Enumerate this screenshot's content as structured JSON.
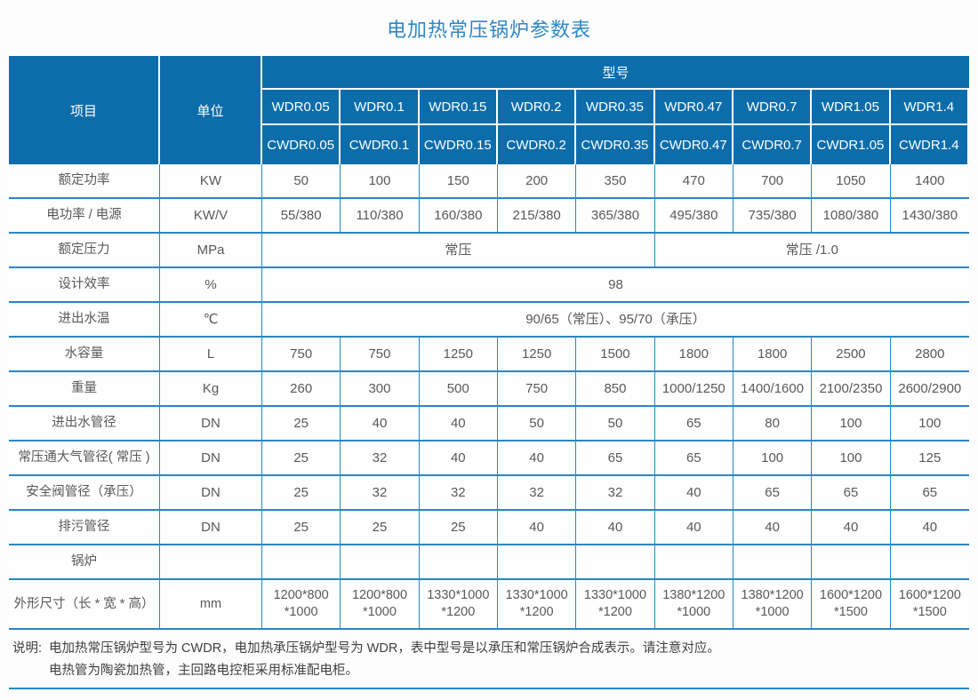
{
  "title": "电加热常压锅炉参数表",
  "colors": {
    "header_bg": "#0d6dab",
    "grid_line": "#2a86c3",
    "header_grid_line": "#ffffff",
    "title_text": "#2e87c5",
    "body_text": "#58595b"
  },
  "table": {
    "header": {
      "item_label": "项目",
      "unit_label": "单位",
      "model_label": "型号",
      "model_rows": [
        [
          "WDR0.05",
          "WDR0.1",
          "WDR0.15",
          "WDR0.2",
          "WDR0.35",
          "WDR0.47",
          "WDR0.7",
          "WDR1.05",
          "WDR1.4"
        ],
        [
          "CWDR0.05",
          "CWDR0.1",
          "CWDR0.15",
          "CWDR0.2",
          "CWDR0.35",
          "CWDR0.47",
          "CWDR0.7",
          "CWDR1.05",
          "CWDR1.4"
        ]
      ]
    },
    "rows": [
      {
        "label": "额定功率",
        "unit": "KW",
        "cells": [
          {
            "t": "50"
          },
          {
            "t": "100"
          },
          {
            "t": "150"
          },
          {
            "t": "200"
          },
          {
            "t": "350"
          },
          {
            "t": "470"
          },
          {
            "t": "700"
          },
          {
            "t": "1050"
          },
          {
            "t": "1400"
          }
        ]
      },
      {
        "label": "电功率 / 电源",
        "unit": "KW/V",
        "cells": [
          {
            "t": "55/380"
          },
          {
            "t": "110/380"
          },
          {
            "t": "160/380"
          },
          {
            "t": "215/380"
          },
          {
            "t": "365/380"
          },
          {
            "t": "495/380"
          },
          {
            "t": "735/380"
          },
          {
            "t": "1080/380"
          },
          {
            "t": "1430/380"
          }
        ]
      },
      {
        "label": "额定压力",
        "unit": "MPa",
        "cells": [
          {
            "t": "常压",
            "span": 5
          },
          {
            "t": "常压 /1.0",
            "span": 4
          }
        ]
      },
      {
        "label": "设计效率",
        "unit": "%",
        "cells": [
          {
            "t": "98",
            "span": 9
          }
        ]
      },
      {
        "label": "进出水温",
        "unit": "℃",
        "cells": [
          {
            "t": "90/65（常压）、95/70（承压）",
            "span": 9
          }
        ]
      },
      {
        "label": "水容量",
        "unit": "L",
        "cells": [
          {
            "t": "750"
          },
          {
            "t": "750"
          },
          {
            "t": "1250"
          },
          {
            "t": "1250"
          },
          {
            "t": "1500"
          },
          {
            "t": "1800"
          },
          {
            "t": "1800"
          },
          {
            "t": "2500"
          },
          {
            "t": "2800"
          }
        ]
      },
      {
        "label": "重量",
        "unit": "Kg",
        "cells": [
          {
            "t": "260"
          },
          {
            "t": "300"
          },
          {
            "t": "500"
          },
          {
            "t": "750"
          },
          {
            "t": "850"
          },
          {
            "t": "1000/1250"
          },
          {
            "t": "1400/1600"
          },
          {
            "t": "2100/2350"
          },
          {
            "t": "2600/2900"
          }
        ]
      },
      {
        "label": "进出水管径",
        "unit": "DN",
        "cells": [
          {
            "t": "25"
          },
          {
            "t": "40"
          },
          {
            "t": "40"
          },
          {
            "t": "50"
          },
          {
            "t": "50"
          },
          {
            "t": "65"
          },
          {
            "t": "80"
          },
          {
            "t": "100"
          },
          {
            "t": "100"
          }
        ]
      },
      {
        "label": "常压通大气管径( 常压 )",
        "unit": "DN",
        "cells": [
          {
            "t": "25"
          },
          {
            "t": "32"
          },
          {
            "t": "40"
          },
          {
            "t": "40"
          },
          {
            "t": "65"
          },
          {
            "t": "65"
          },
          {
            "t": "100"
          },
          {
            "t": "100"
          },
          {
            "t": "125"
          }
        ]
      },
      {
        "label": "安全阀管径（承压）",
        "unit": "DN",
        "cells": [
          {
            "t": "25"
          },
          {
            "t": "32"
          },
          {
            "t": "32"
          },
          {
            "t": "32"
          },
          {
            "t": "32"
          },
          {
            "t": "40"
          },
          {
            "t": "65"
          },
          {
            "t": "65"
          },
          {
            "t": "65"
          }
        ]
      },
      {
        "label": "排污管径",
        "unit": "DN",
        "cells": [
          {
            "t": "25"
          },
          {
            "t": "25"
          },
          {
            "t": "25"
          },
          {
            "t": "40"
          },
          {
            "t": "40"
          },
          {
            "t": "40"
          },
          {
            "t": "40"
          },
          {
            "t": "40"
          },
          {
            "t": "40"
          }
        ]
      },
      {
        "label": "锅炉",
        "unit": "",
        "cells": [
          {
            "t": ""
          },
          {
            "t": ""
          },
          {
            "t": ""
          },
          {
            "t": ""
          },
          {
            "t": ""
          },
          {
            "t": ""
          },
          {
            "t": ""
          },
          {
            "t": ""
          },
          {
            "t": ""
          }
        ]
      },
      {
        "label": "外形尺寸（长 * 宽 * 高）",
        "unit": "mm",
        "tall": true,
        "cells": [
          {
            "t": "1200*800\n*1000"
          },
          {
            "t": "1200*800\n*1000"
          },
          {
            "t": "1330*1000\n*1200"
          },
          {
            "t": "1330*1000\n*1200"
          },
          {
            "t": "1330*1000\n*1200"
          },
          {
            "t": "1380*1200\n*1000"
          },
          {
            "t": "1380*1200\n*1000"
          },
          {
            "t": "1600*1200\n*1500"
          },
          {
            "t": "1600*1200\n*1500"
          }
        ]
      }
    ]
  },
  "note": {
    "label": "说明:",
    "lines": [
      "电加热常压锅炉型号为 CWDR，电加热承压锅炉型号为 WDR，表中型号是以承压和常压锅炉合成表示。请注意对应。",
      "电热管为陶瓷加热管，主回路电控柜采用标准配电柜。"
    ]
  }
}
